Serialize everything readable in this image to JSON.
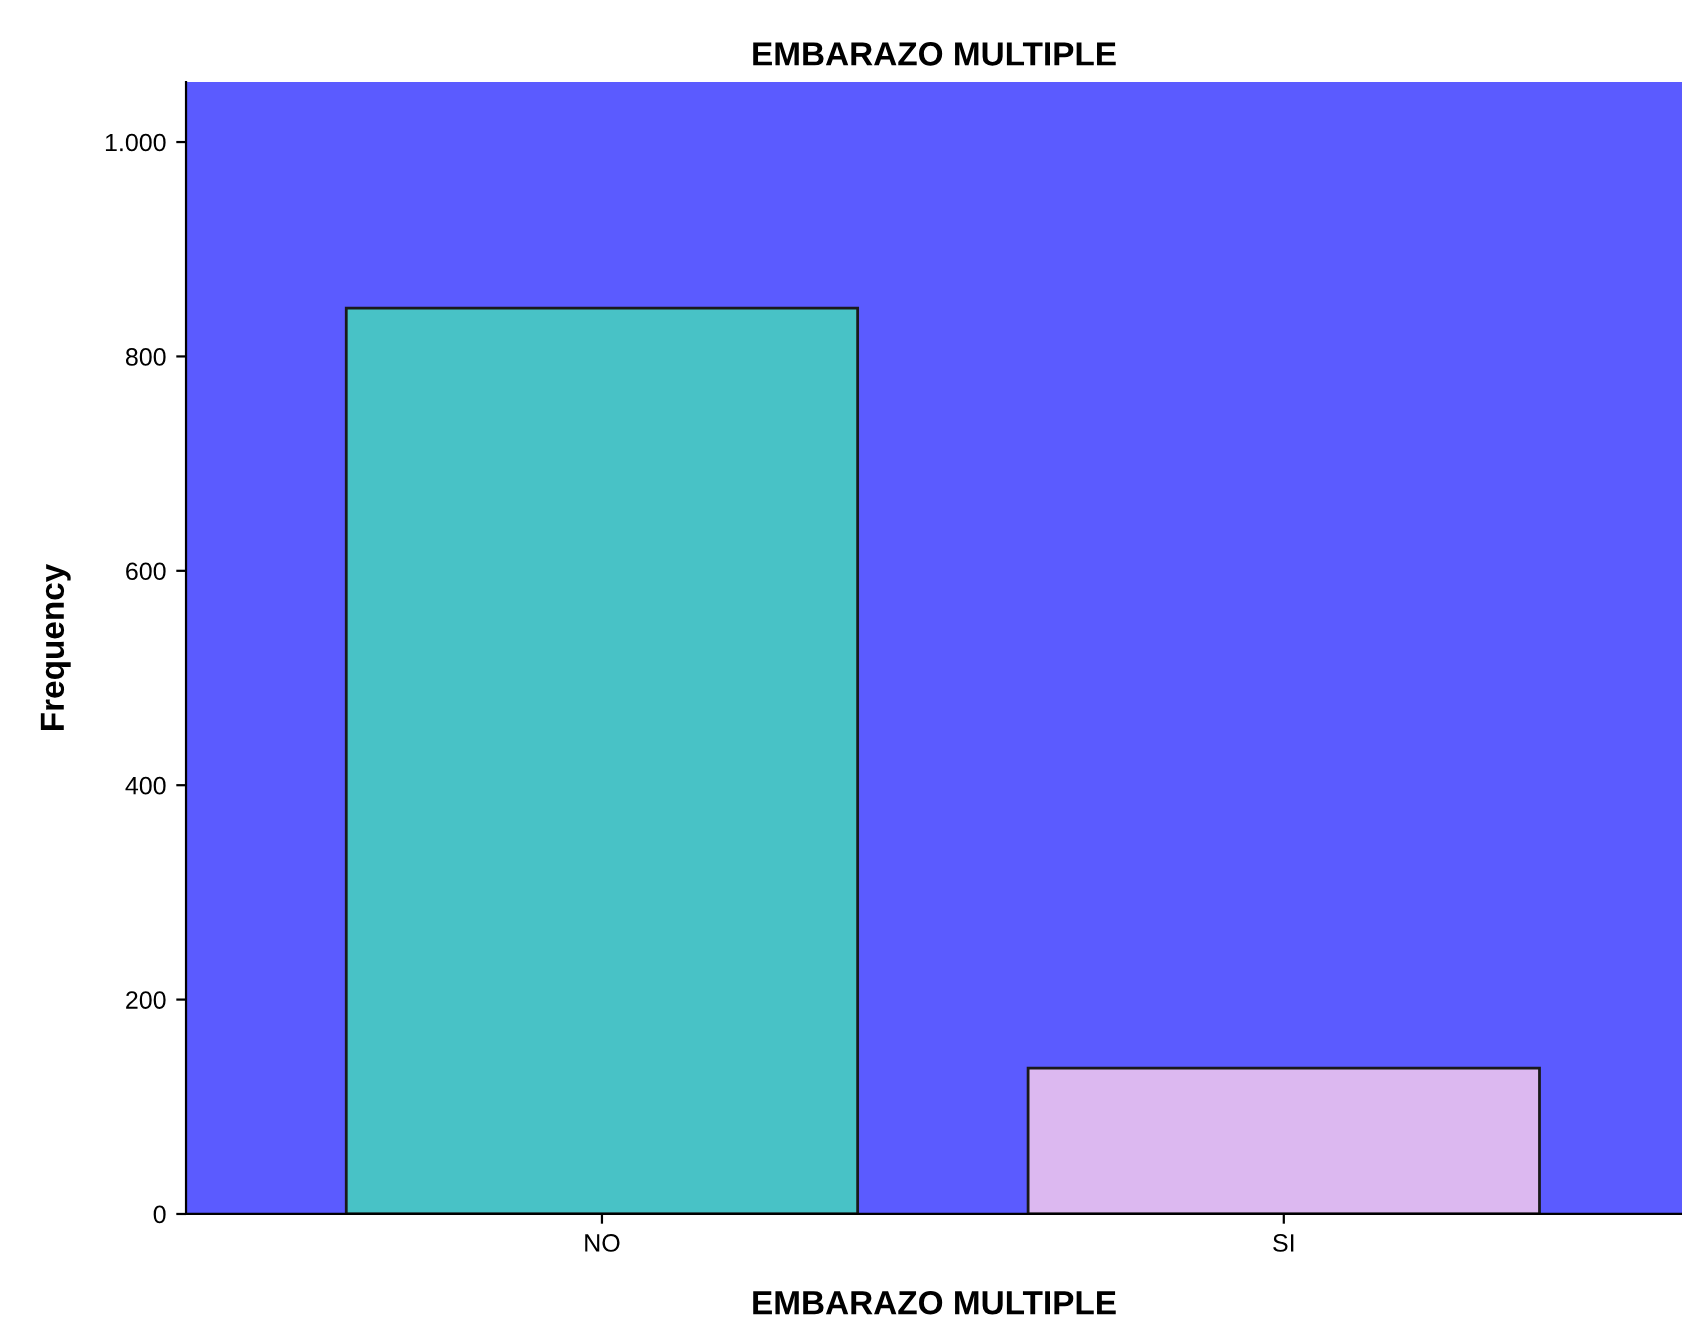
{
  "chart_data": {
    "type": "bar",
    "title": "EMBARAZO MULTIPLE",
    "xlabel": "EMBARAZO MULTIPLE",
    "ylabel": "Frequency",
    "categories": [
      "NO",
      "SI"
    ],
    "values": [
      845,
      136
    ],
    "colors": [
      "#48c2c6",
      "#dcb8f0"
    ],
    "ylim": [
      0,
      1056
    ],
    "yticks": [
      0,
      200,
      400,
      600,
      800,
      {
        "value": 1000,
        "label": "1.000"
      }
    ],
    "grid": false,
    "legend": false
  }
}
